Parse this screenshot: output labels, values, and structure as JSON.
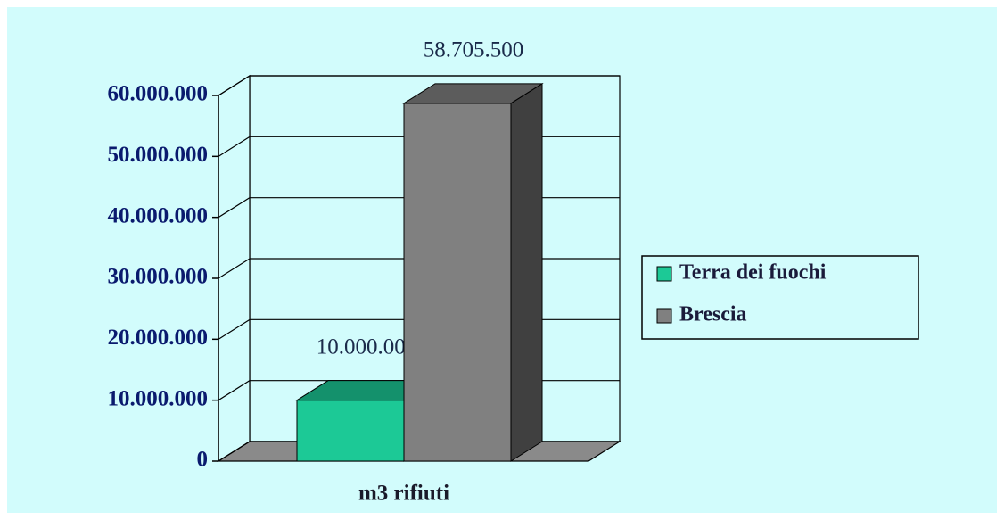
{
  "chart_data": {
    "type": "bar3d",
    "categories": [
      "m3 rifiuti"
    ],
    "series": [
      {
        "name": "Terra dei fuochi",
        "color": "#1cc996",
        "values": [
          10000000
        ],
        "value_labels": [
          "10.000.000"
        ]
      },
      {
        "name": "Brescia",
        "color": "#808080",
        "values": [
          58705500
        ],
        "value_labels": [
          "58.705.500"
        ]
      }
    ],
    "ylim": [
      0,
      60000000
    ],
    "yticks": [
      0,
      {
        "value": 10000000,
        "label": "10.000.000"
      },
      {
        "value": 20000000,
        "label": "20.000.000"
      },
      {
        "value": 30000000,
        "label": "30.000.000"
      },
      {
        "value": 40000000,
        "label": "40.000.000"
      },
      {
        "value": 50000000,
        "label": "50.000.000"
      },
      {
        "value": 60000000,
        "label": "60.000.000"
      }
    ],
    "grid": true,
    "legend": "right"
  }
}
